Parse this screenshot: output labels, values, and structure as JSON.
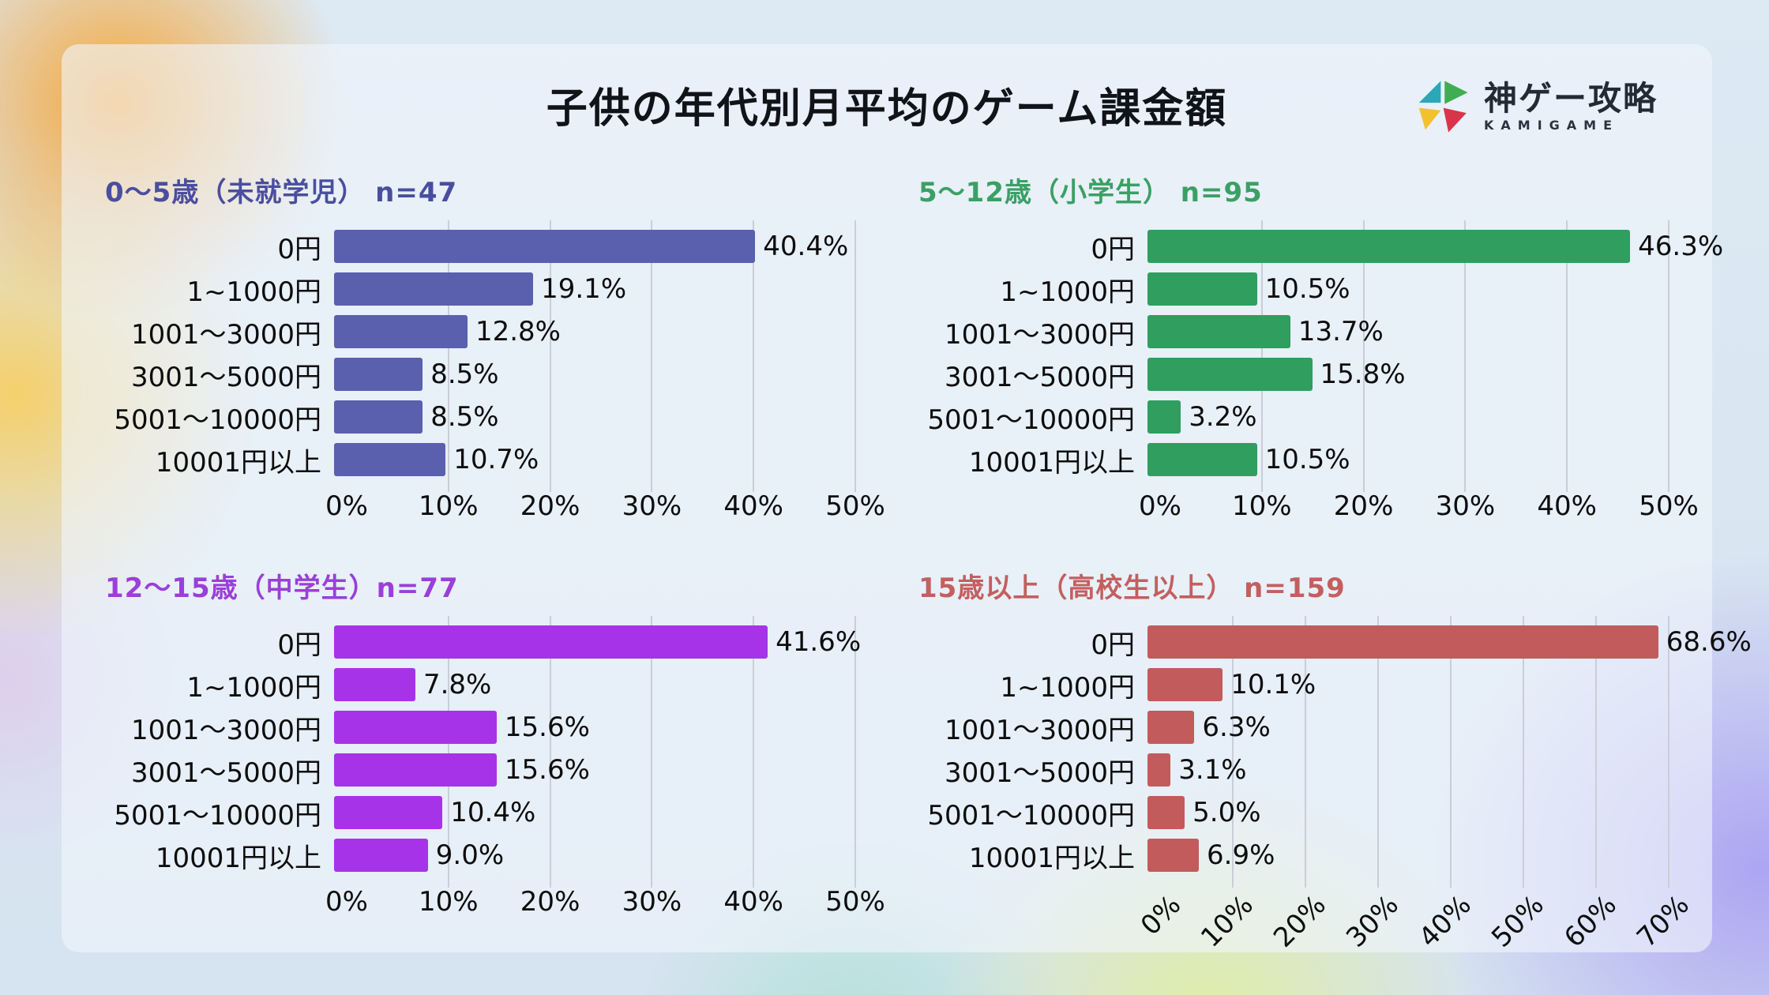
{
  "page": {
    "title": "子供の年代別月平均のゲーム課金額"
  },
  "logo": {
    "text": "神ゲー攻略",
    "subtext": "KAMIGAME",
    "mark_colors": {
      "teal": "#2ba7b8",
      "green": "#3fae52",
      "yellow": "#f2c12e",
      "red": "#d9344a"
    }
  },
  "categories": [
    "0円",
    "1~1000円",
    "1001〜3000円",
    "3001〜5000円",
    "5001〜10000円",
    "10001円以上"
  ],
  "chart_data": [
    {
      "type": "bar",
      "orientation": "horizontal",
      "title": "0〜5歳（未就学児） n=47",
      "sample_size": 47,
      "values": [
        40.4,
        19.1,
        12.8,
        8.5,
        8.5,
        10.7
      ],
      "value_labels": [
        "40.4%",
        "19.1%",
        "12.8%",
        "8.5%",
        "8.5%",
        "10.7%"
      ],
      "xlim": [
        0,
        50
      ],
      "tick_values": [
        0,
        10,
        20,
        30,
        40,
        50
      ],
      "tick_labels": [
        "0%",
        "10%",
        "20%",
        "30%",
        "40%",
        "50%"
      ],
      "rotated_ticks": false,
      "bar_color": "#5a5fae",
      "title_color": "#4a4e9e"
    },
    {
      "type": "bar",
      "orientation": "horizontal",
      "title": "5〜12歳（小学生） n=95",
      "sample_size": 95,
      "values": [
        46.3,
        10.5,
        13.7,
        15.8,
        3.2,
        10.5
      ],
      "value_labels": [
        "46.3%",
        "10.5%",
        "13.7%",
        "15.8%",
        "3.2%",
        "10.5%"
      ],
      "xlim": [
        0,
        50
      ],
      "tick_values": [
        0,
        10,
        20,
        30,
        40,
        50
      ],
      "tick_labels": [
        "0%",
        "10%",
        "20%",
        "30%",
        "40%",
        "50%"
      ],
      "rotated_ticks": false,
      "bar_color": "#2f9e5f",
      "title_color": "#3aa065"
    },
    {
      "type": "bar",
      "orientation": "horizontal",
      "title": "12〜15歳（中学生）n=77",
      "sample_size": 77,
      "values": [
        41.6,
        7.8,
        15.6,
        15.6,
        10.4,
        9.0
      ],
      "value_labels": [
        "41.6%",
        "7.8%",
        "15.6%",
        "15.6%",
        "10.4%",
        "9.0%"
      ],
      "xlim": [
        0,
        50
      ],
      "tick_values": [
        0,
        10,
        20,
        30,
        40,
        50
      ],
      "tick_labels": [
        "0%",
        "10%",
        "20%",
        "30%",
        "40%",
        "50%"
      ],
      "rotated_ticks": false,
      "bar_color": "#a733e8",
      "title_color": "#9a3fd9"
    },
    {
      "type": "bar",
      "orientation": "horizontal",
      "title": "15歳以上（高校生以上） n=159",
      "sample_size": 159,
      "values": [
        68.6,
        10.1,
        6.3,
        3.1,
        5.0,
        6.9
      ],
      "value_labels": [
        "68.6%",
        "10.1%",
        "6.3%",
        "3.1%",
        "5.0%",
        "6.9%"
      ],
      "xlim": [
        0,
        70
      ],
      "tick_values": [
        0,
        10,
        20,
        30,
        40,
        50,
        60,
        70
      ],
      "tick_labels": [
        "0%",
        "10%",
        "20%",
        "30%",
        "40%",
        "50%",
        "60%",
        "70%"
      ],
      "rotated_ticks": true,
      "bar_color": "#c25b5b",
      "title_color": "#c35f5f"
    }
  ]
}
